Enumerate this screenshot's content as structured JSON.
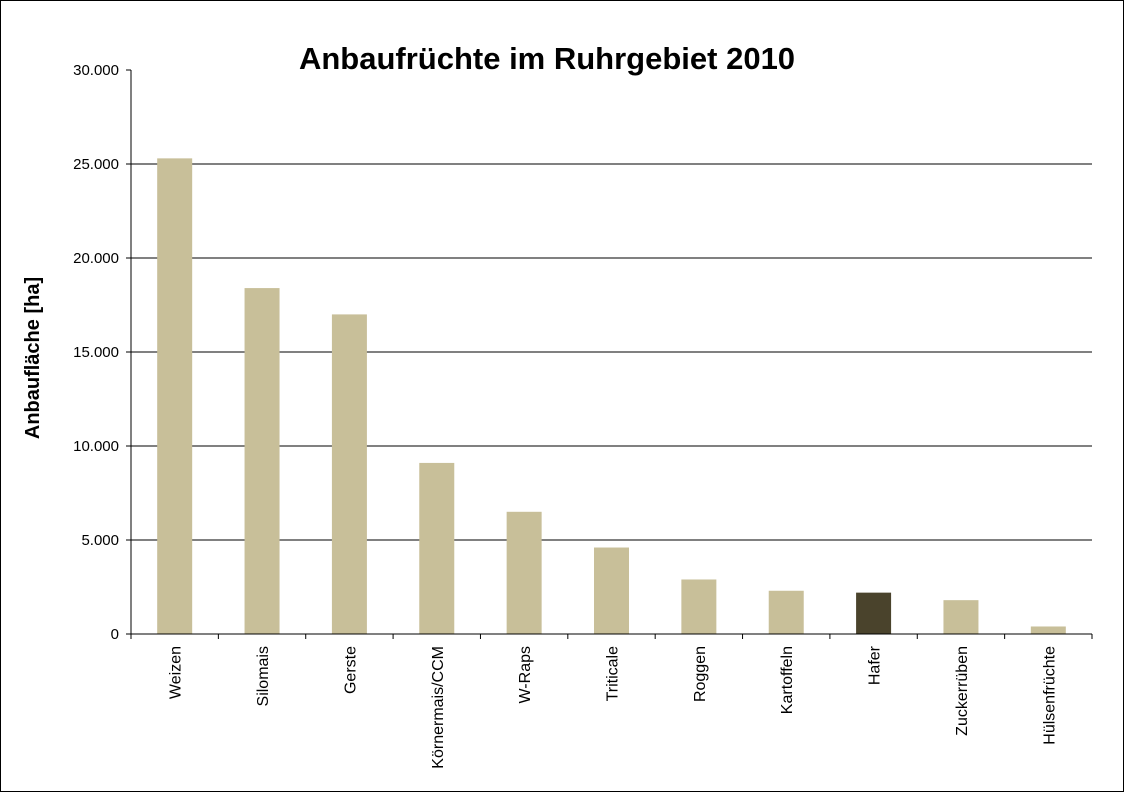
{
  "chart_data": {
    "type": "bar",
    "title": "Anbaufrüchte  im Ruhrgebiet 2010",
    "xlabel": "",
    "ylabel": "Anbaufläche [ha]",
    "categories": [
      "Weizen",
      "Silomais",
      "Gerste",
      "Körnermais/CCM",
      "W-Raps",
      "Triticale",
      "Roggen",
      "Kartoffeln",
      "Hafer",
      "Zuckerrüben",
      "Hülsenfrüchte"
    ],
    "values": [
      25300,
      18400,
      17000,
      9100,
      6500,
      4600,
      2900,
      2300,
      2200,
      1800,
      400
    ],
    "ylim": [
      0,
      30000
    ],
    "yticks": [
      0,
      5000,
      10000,
      15000,
      20000,
      25000,
      30000
    ],
    "ytick_labels": [
      "0",
      "5.000",
      "10.000",
      "15.000",
      "20.000",
      "25.000",
      "30.000"
    ],
    "grid": true,
    "legend": "none",
    "bar_color": "#c8bf99",
    "highlight_color": "#4a432c",
    "highlight_category": "Hafer"
  }
}
